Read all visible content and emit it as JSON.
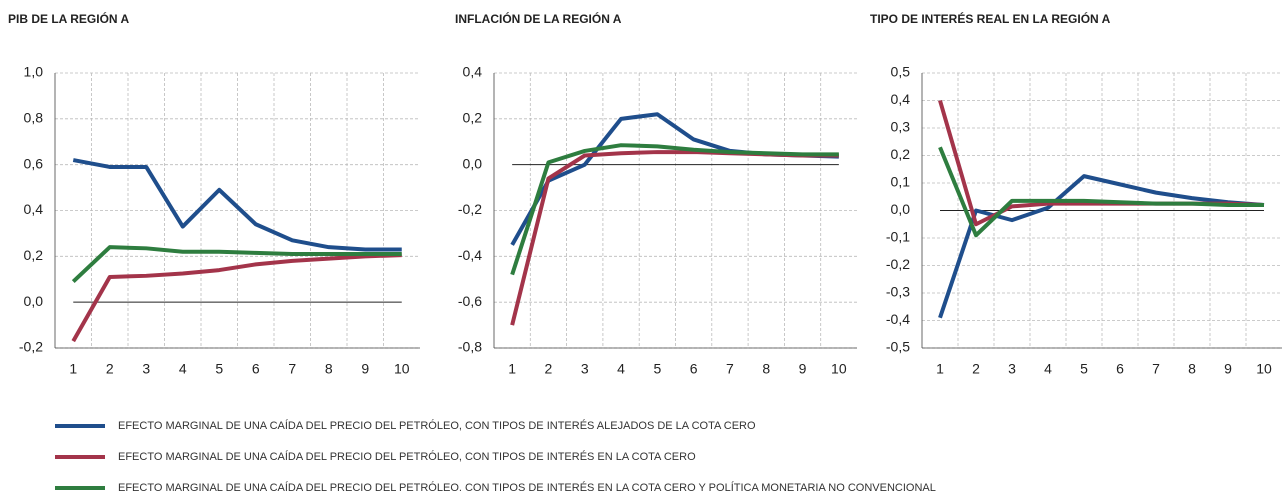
{
  "chart_data": [
    {
      "type": "line",
      "title": "PIB DE LA REGIÓN A",
      "categories": [
        "1",
        "2",
        "3",
        "4",
        "5",
        "6",
        "7",
        "8",
        "9",
        "10"
      ],
      "ylim": [
        -0.2,
        1.0
      ],
      "yticks": [
        {
          "value": -0.2,
          "label": "-0,2"
        },
        {
          "value": 0,
          "label": "0,0"
        },
        {
          "value": 0.2,
          "label": "0,2"
        },
        {
          "value": 0.4,
          "label": "0,4"
        },
        {
          "value": 0.6,
          "label": "0,6"
        },
        {
          "value": 0.8,
          "label": "0,8"
        },
        {
          "value": 1.0,
          "label": "1,0"
        }
      ],
      "grid": true,
      "series": [
        {
          "values": [
            0.62,
            0.59,
            0.59,
            0.33,
            0.49,
            0.34,
            0.27,
            0.24,
            0.23,
            0.23
          ]
        },
        {
          "values": [
            -0.17,
            0.11,
            0.115,
            0.125,
            0.14,
            0.165,
            0.18,
            0.19,
            0.2,
            0.205
          ]
        },
        {
          "values": [
            0.09,
            0.24,
            0.235,
            0.22,
            0.22,
            0.215,
            0.21,
            0.21,
            0.21,
            0.21
          ]
        }
      ]
    },
    {
      "type": "line",
      "title": "INFLACIÓN DE LA REGIÓN A",
      "categories": [
        "1",
        "2",
        "3",
        "4",
        "5",
        "6",
        "7",
        "8",
        "9",
        "10"
      ],
      "ylim": [
        -0.8,
        0.4
      ],
      "yticks": [
        {
          "value": -0.8,
          "label": "-0,8"
        },
        {
          "value": -0.6,
          "label": "-0,6"
        },
        {
          "value": -0.4,
          "label": "-0,4"
        },
        {
          "value": -0.2,
          "label": "-0,2"
        },
        {
          "value": 0,
          "label": "0,0"
        },
        {
          "value": 0.2,
          "label": "0,2"
        },
        {
          "value": 0.4,
          "label": "0,4"
        }
      ],
      "grid": true,
      "series": [
        {
          "values": [
            -0.35,
            -0.07,
            0.0,
            0.2,
            0.22,
            0.11,
            0.06,
            0.045,
            0.04,
            0.035
          ]
        },
        {
          "values": [
            -0.7,
            -0.06,
            0.04,
            0.05,
            0.055,
            0.055,
            0.05,
            0.045,
            0.04,
            0.04
          ]
        },
        {
          "values": [
            -0.48,
            0.01,
            0.06,
            0.085,
            0.08,
            0.065,
            0.055,
            0.05,
            0.045,
            0.045
          ]
        }
      ]
    },
    {
      "type": "line",
      "title": "TIPO DE INTERÉS REAL EN LA REGIÓN A",
      "categories": [
        "1",
        "2",
        "3",
        "4",
        "5",
        "6",
        "7",
        "8",
        "9",
        "10"
      ],
      "ylim": [
        -0.5,
        0.5
      ],
      "yticks": [
        {
          "value": -0.5,
          "label": "-0,5"
        },
        {
          "value": -0.4,
          "label": "-0,4"
        },
        {
          "value": -0.3,
          "label": "-0,3"
        },
        {
          "value": -0.2,
          "label": "-0,2"
        },
        {
          "value": -0.1,
          "label": "-0,1"
        },
        {
          "value": 0,
          "label": "0,0"
        },
        {
          "value": 0.1,
          "label": "0,1"
        },
        {
          "value": 0.2,
          "label": "0,2"
        },
        {
          "value": 0.3,
          "label": "0,3"
        },
        {
          "value": 0.4,
          "label": "0,4"
        },
        {
          "value": 0.5,
          "label": "0,5"
        }
      ],
      "grid": true,
      "series": [
        {
          "values": [
            -0.39,
            0.0,
            -0.035,
            0.01,
            0.125,
            0.095,
            0.065,
            0.045,
            0.03,
            0.02
          ]
        },
        {
          "values": [
            0.4,
            -0.05,
            0.015,
            0.025,
            0.025,
            0.025,
            0.025,
            0.025,
            0.025,
            0.02
          ]
        },
        {
          "values": [
            0.23,
            -0.09,
            0.035,
            0.035,
            0.035,
            0.03,
            0.025,
            0.025,
            0.02,
            0.02
          ]
        }
      ]
    }
  ],
  "legend": [
    {
      "name": "EFECTO MARGINAL DE UNA CAÍDA DEL PRECIO DEL PETRÓLEO, CON TIPOS DE INTERÉS ALEJADOS DE LA COTA CERO",
      "color": "#1f4e8c"
    },
    {
      "name": "EFECTO MARGINAL DE UNA CAÍDA DEL PRECIO DEL PETRÓLEO, CON TIPOS DE INTERÉS EN LA COTA CERO",
      "color": "#a3344a"
    },
    {
      "name": "EFECTO MARGINAL DE UNA CAÍDA DEL PRECIO DEL PETRÓLEO, CON TIPOS DE INTERÉS EN LA COTA CERO Y POLÍTICA MONETARIA NO CONVENCIONAL",
      "color": "#2e7d3f"
    }
  ]
}
